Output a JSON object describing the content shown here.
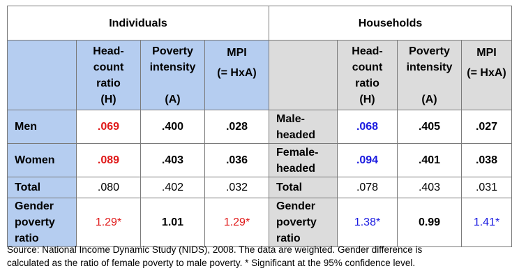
{
  "sections": {
    "individuals": "Individuals",
    "households": "Households"
  },
  "col_headers": {
    "headcount": [
      "Head-",
      "count",
      "ratio",
      "(H)"
    ],
    "intensity": [
      "Poverty",
      "intensity",
      "",
      "(A)"
    ],
    "mpi": [
      "MPI",
      "(= HxA)"
    ]
  },
  "rows": [
    {
      "ind_label": [
        "Men"
      ],
      "ind": [
        ".069",
        ".400",
        ".028"
      ],
      "hh_label": [
        "Male-",
        "headed"
      ],
      "hh": [
        ".068",
        ".405",
        ".027"
      ]
    },
    {
      "ind_label": [
        "Women"
      ],
      "ind": [
        ".089",
        ".403",
        ".036"
      ],
      "hh_label": [
        "Female-",
        "headed"
      ],
      "hh": [
        ".094",
        ".401",
        ".038"
      ]
    },
    {
      "ind_label": [
        "Total"
      ],
      "ind": [
        ".080",
        ".402",
        ".032"
      ],
      "hh_label": [
        "Total"
      ],
      "hh": [
        ".078",
        ".403",
        ".031"
      ]
    },
    {
      "ind_label": [
        "Gender",
        "poverty",
        "ratio"
      ],
      "ind": [
        "1.29*",
        "1.01",
        "1.29*"
      ],
      "hh_label": [
        "Gender",
        "poverty",
        "ratio"
      ],
      "hh": [
        "1.38*",
        "0.99",
        "1.41*"
      ]
    }
  ],
  "source": [
    "Source: National Income Dynamic Study (NIDS), 2008. The data are weighted. Gender difference is",
    "calculated as the ratio of female poverty to male poverty. * Significant at the 95% confidence level."
  ],
  "colors": {
    "blue_header": "#b5cdf0",
    "grey_header": "#dcdcdc",
    "red": "#e01a1a",
    "blue": "#1a1ae0"
  }
}
